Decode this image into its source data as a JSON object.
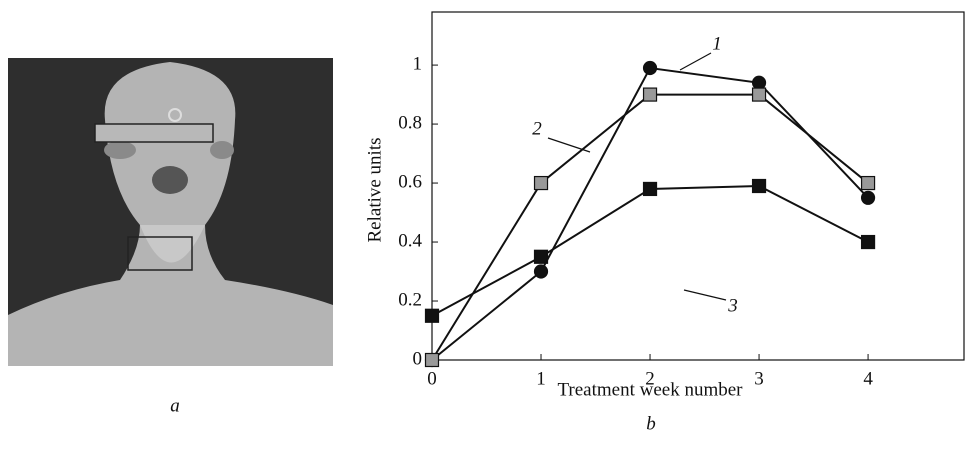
{
  "panel_labels": [
    "a",
    "b"
  ],
  "chart_data": {
    "type": "line",
    "x_label": "Treatment week number",
    "y_label": "Relative units",
    "x": [
      0,
      1,
      2,
      3,
      4
    ],
    "series": [
      {
        "name": "1",
        "color": "#111111",
        "marker": "circle",
        "values": [
          0,
          0.3,
          0.99,
          0.94,
          0.55
        ]
      },
      {
        "name": "2",
        "color": "#999999",
        "marker": "square",
        "values": [
          0,
          0.6,
          0.9,
          0.9,
          0.6
        ]
      },
      {
        "name": "3",
        "color": "#111111",
        "marker": "square",
        "values": [
          0.15,
          0.35,
          0.58,
          0.59,
          0.4
        ]
      }
    ],
    "line_color": "#111111",
    "xlim": [
      0,
      4.88
    ],
    "ylim": [
      0,
      1.18
    ],
    "xticks": [
      0,
      1,
      2,
      3,
      4
    ],
    "yticks": [
      0,
      0.2,
      0.4,
      0.6,
      0.8,
      1
    ]
  }
}
